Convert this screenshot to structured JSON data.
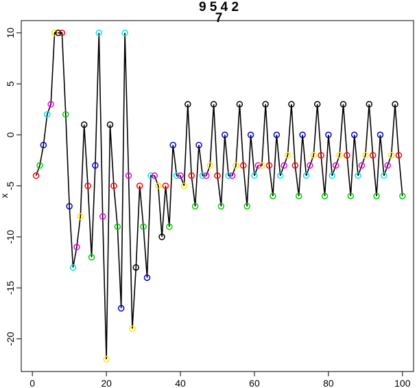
{
  "chart_data": {
    "type": "line",
    "title_line1": "9 5 4 2",
    "title_line2": "7",
    "xlabel": "",
    "ylabel": "x",
    "xlim": [
      -3,
      103
    ],
    "ylim": [
      -23.2,
      11.2
    ],
    "x_ticks": [
      0,
      20,
      40,
      60,
      80,
      100
    ],
    "y_ticks": [
      10,
      5,
      0,
      -5,
      -10,
      -15,
      -20
    ],
    "grid": false,
    "legend": "none",
    "color_cycle": [
      "#FF0000",
      "#00CC00",
      "#0000CC",
      "#00E5E5",
      "#E600E6",
      "#FFE600",
      "#000000"
    ],
    "line_color": "#000000",
    "x": [
      1,
      2,
      3,
      4,
      5,
      6,
      7,
      8,
      9,
      10,
      11,
      12,
      13,
      14,
      15,
      16,
      17,
      18,
      19,
      20,
      21,
      22,
      23,
      24,
      25,
      26,
      27,
      28,
      29,
      30,
      31,
      32,
      33,
      34,
      35,
      36,
      37,
      38,
      39,
      40,
      41,
      42,
      43,
      44,
      45,
      46,
      47,
      48,
      49,
      50,
      51,
      52,
      53,
      54,
      55,
      56,
      57,
      58,
      59,
      60,
      61,
      62,
      63,
      64,
      65,
      66,
      67,
      68,
      69,
      70,
      71,
      72,
      73,
      74,
      75,
      76,
      77,
      78,
      79,
      80,
      81,
      82,
      83,
      84,
      85,
      86,
      87,
      88,
      89,
      90,
      91,
      92,
      93,
      94,
      95,
      96,
      97,
      98,
      99,
      100
    ],
    "values": [
      -4,
      -3,
      -1,
      2,
      3,
      10,
      10,
      10,
      2,
      -7,
      -13,
      -11,
      -8,
      1,
      -5,
      -12,
      -3,
      10,
      -8,
      -22,
      1,
      -5,
      -9,
      -17,
      10,
      -4,
      -19,
      -13,
      -5,
      -9,
      -14,
      -4,
      -4,
      -5,
      -10,
      -5,
      -9,
      -1,
      -4,
      -4,
      -5,
      3,
      -4,
      -7,
      -1,
      -4,
      -4,
      -3,
      3,
      -4,
      -7,
      0,
      -4,
      -4,
      -3,
      3,
      -3,
      -7,
      0,
      -4,
      -3,
      -3,
      3,
      -3,
      -6,
      0,
      -4,
      -3,
      -2,
      3,
      -3,
      -6,
      0,
      -4,
      -3,
      -2,
      3,
      -2,
      -6,
      0,
      -4,
      -3,
      -2,
      3,
      -2,
      -6,
      0,
      -4,
      -3,
      -2,
      3,
      -2,
      -6,
      0,
      -4,
      -3,
      -2,
      3,
      -2,
      -6
    ]
  }
}
